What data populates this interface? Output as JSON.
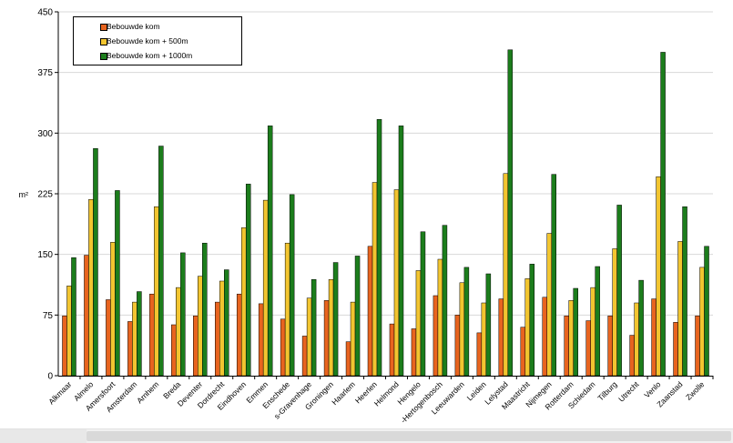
{
  "chart_data": {
    "type": "bar",
    "title": "",
    "xlabel": "",
    "ylabel": "m²",
    "ylim": [
      0,
      450
    ],
    "yticks": [
      "0",
      "75",
      "150",
      "225",
      "300",
      "375",
      "450"
    ],
    "grid": true,
    "legend_position": "top-left",
    "categories": [
      "Alkmaar",
      "Almelo",
      "Amersfoort",
      "Amsterdam",
      "Arnhem",
      "Breda",
      "Deventer",
      "Dordrecht",
      "Eindhoven",
      "Emmen",
      "Enschede",
      "s-Gravenhage",
      "Groningen",
      "Haarlem",
      "Heerlen",
      "Helmond",
      "Hengelo",
      "-Hertogenbosch",
      "Leeuwarden",
      "Leiden",
      "Lelystad",
      "Maastricht",
      "Nijmegen",
      "Rotterdam",
      "Schiedam",
      "Tilburg",
      "Utrecht",
      "Venlo",
      "Zaanstad",
      "Zwolle"
    ],
    "series": [
      {
        "name": "Bebouwde kom",
        "color": "#e8641f",
        "values": [
          74,
          149,
          94,
          67,
          101,
          63,
          74,
          91,
          101,
          89,
          70,
          49,
          93,
          42,
          160,
          64,
          58,
          99,
          75,
          53,
          95,
          60,
          97,
          74,
          68,
          74,
          50,
          95,
          66,
          74
        ]
      },
      {
        "name": "Bebouwde kom + 500m",
        "color": "#f2c530",
        "values": [
          111,
          218,
          165,
          91,
          209,
          109,
          123,
          117,
          183,
          217,
          164,
          96,
          119,
          91,
          239,
          230,
          130,
          144,
          115,
          90,
          250,
          120,
          176,
          93,
          109,
          157,
          90,
          246,
          166,
          134
        ]
      },
      {
        "name": "Bebouwde kom + 1000m",
        "color": "#1c7d1c",
        "values": [
          146,
          281,
          229,
          104,
          284,
          152,
          164,
          131,
          237,
          309,
          224,
          119,
          140,
          148,
          317,
          309,
          178,
          186,
          134,
          126,
          403,
          138,
          249,
          108,
          135,
          211,
          118,
          400,
          209,
          160
        ]
      }
    ]
  }
}
